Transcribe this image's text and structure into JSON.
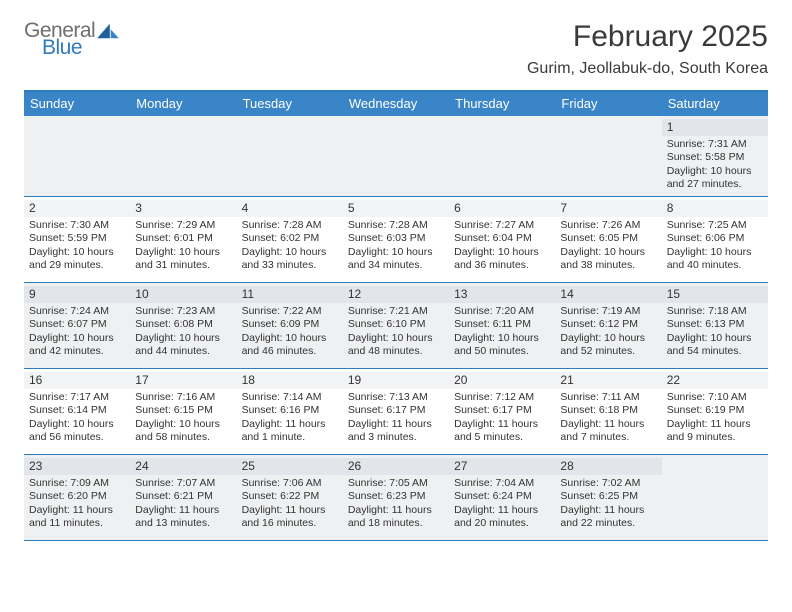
{
  "logo": {
    "word1": "General",
    "word2": "Blue"
  },
  "title": "February 2025",
  "location": "Gurim, Jeollabuk-do, South Korea",
  "colors": {
    "header_bar": "#3a85c7",
    "rule": "#2f7bbf",
    "shaded_cell": "#eef0f2",
    "shaded_band": "#e2e5e9",
    "plain_band": "#f2f3f5",
    "text": "#333333",
    "logo_gray": "#6f6f6f",
    "logo_blue": "#2f7bbf"
  },
  "days_of_week": [
    "Sunday",
    "Monday",
    "Tuesday",
    "Wednesday",
    "Thursday",
    "Friday",
    "Saturday"
  ],
  "weeks": [
    [
      {
        "blank": true
      },
      {
        "blank": true
      },
      {
        "blank": true
      },
      {
        "blank": true
      },
      {
        "blank": true
      },
      {
        "blank": true
      },
      {
        "day": "1",
        "sunrise": "Sunrise: 7:31 AM",
        "sunset": "Sunset: 5:58 PM",
        "daylight": "Daylight: 10 hours and 27 minutes."
      }
    ],
    [
      {
        "day": "2",
        "sunrise": "Sunrise: 7:30 AM",
        "sunset": "Sunset: 5:59 PM",
        "daylight": "Daylight: 10 hours and 29 minutes."
      },
      {
        "day": "3",
        "sunrise": "Sunrise: 7:29 AM",
        "sunset": "Sunset: 6:01 PM",
        "daylight": "Daylight: 10 hours and 31 minutes."
      },
      {
        "day": "4",
        "sunrise": "Sunrise: 7:28 AM",
        "sunset": "Sunset: 6:02 PM",
        "daylight": "Daylight: 10 hours and 33 minutes."
      },
      {
        "day": "5",
        "sunrise": "Sunrise: 7:28 AM",
        "sunset": "Sunset: 6:03 PM",
        "daylight": "Daylight: 10 hours and 34 minutes."
      },
      {
        "day": "6",
        "sunrise": "Sunrise: 7:27 AM",
        "sunset": "Sunset: 6:04 PM",
        "daylight": "Daylight: 10 hours and 36 minutes."
      },
      {
        "day": "7",
        "sunrise": "Sunrise: 7:26 AM",
        "sunset": "Sunset: 6:05 PM",
        "daylight": "Daylight: 10 hours and 38 minutes."
      },
      {
        "day": "8",
        "sunrise": "Sunrise: 7:25 AM",
        "sunset": "Sunset: 6:06 PM",
        "daylight": "Daylight: 10 hours and 40 minutes."
      }
    ],
    [
      {
        "day": "9",
        "sunrise": "Sunrise: 7:24 AM",
        "sunset": "Sunset: 6:07 PM",
        "daylight": "Daylight: 10 hours and 42 minutes."
      },
      {
        "day": "10",
        "sunrise": "Sunrise: 7:23 AM",
        "sunset": "Sunset: 6:08 PM",
        "daylight": "Daylight: 10 hours and 44 minutes."
      },
      {
        "day": "11",
        "sunrise": "Sunrise: 7:22 AM",
        "sunset": "Sunset: 6:09 PM",
        "daylight": "Daylight: 10 hours and 46 minutes."
      },
      {
        "day": "12",
        "sunrise": "Sunrise: 7:21 AM",
        "sunset": "Sunset: 6:10 PM",
        "daylight": "Daylight: 10 hours and 48 minutes."
      },
      {
        "day": "13",
        "sunrise": "Sunrise: 7:20 AM",
        "sunset": "Sunset: 6:11 PM",
        "daylight": "Daylight: 10 hours and 50 minutes."
      },
      {
        "day": "14",
        "sunrise": "Sunrise: 7:19 AM",
        "sunset": "Sunset: 6:12 PM",
        "daylight": "Daylight: 10 hours and 52 minutes."
      },
      {
        "day": "15",
        "sunrise": "Sunrise: 7:18 AM",
        "sunset": "Sunset: 6:13 PM",
        "daylight": "Daylight: 10 hours and 54 minutes."
      }
    ],
    [
      {
        "day": "16",
        "sunrise": "Sunrise: 7:17 AM",
        "sunset": "Sunset: 6:14 PM",
        "daylight": "Daylight: 10 hours and 56 minutes."
      },
      {
        "day": "17",
        "sunrise": "Sunrise: 7:16 AM",
        "sunset": "Sunset: 6:15 PM",
        "daylight": "Daylight: 10 hours and 58 minutes."
      },
      {
        "day": "18",
        "sunrise": "Sunrise: 7:14 AM",
        "sunset": "Sunset: 6:16 PM",
        "daylight": "Daylight: 11 hours and 1 minute."
      },
      {
        "day": "19",
        "sunrise": "Sunrise: 7:13 AM",
        "sunset": "Sunset: 6:17 PM",
        "daylight": "Daylight: 11 hours and 3 minutes."
      },
      {
        "day": "20",
        "sunrise": "Sunrise: 7:12 AM",
        "sunset": "Sunset: 6:17 PM",
        "daylight": "Daylight: 11 hours and 5 minutes."
      },
      {
        "day": "21",
        "sunrise": "Sunrise: 7:11 AM",
        "sunset": "Sunset: 6:18 PM",
        "daylight": "Daylight: 11 hours and 7 minutes."
      },
      {
        "day": "22",
        "sunrise": "Sunrise: 7:10 AM",
        "sunset": "Sunset: 6:19 PM",
        "daylight": "Daylight: 11 hours and 9 minutes."
      }
    ],
    [
      {
        "day": "23",
        "sunrise": "Sunrise: 7:09 AM",
        "sunset": "Sunset: 6:20 PM",
        "daylight": "Daylight: 11 hours and 11 minutes."
      },
      {
        "day": "24",
        "sunrise": "Sunrise: 7:07 AM",
        "sunset": "Sunset: 6:21 PM",
        "daylight": "Daylight: 11 hours and 13 minutes."
      },
      {
        "day": "25",
        "sunrise": "Sunrise: 7:06 AM",
        "sunset": "Sunset: 6:22 PM",
        "daylight": "Daylight: 11 hours and 16 minutes."
      },
      {
        "day": "26",
        "sunrise": "Sunrise: 7:05 AM",
        "sunset": "Sunset: 6:23 PM",
        "daylight": "Daylight: 11 hours and 18 minutes."
      },
      {
        "day": "27",
        "sunrise": "Sunrise: 7:04 AM",
        "sunset": "Sunset: 6:24 PM",
        "daylight": "Daylight: 11 hours and 20 minutes."
      },
      {
        "day": "28",
        "sunrise": "Sunrise: 7:02 AM",
        "sunset": "Sunset: 6:25 PM",
        "daylight": "Daylight: 11 hours and 22 minutes."
      },
      {
        "blank": true
      }
    ]
  ]
}
